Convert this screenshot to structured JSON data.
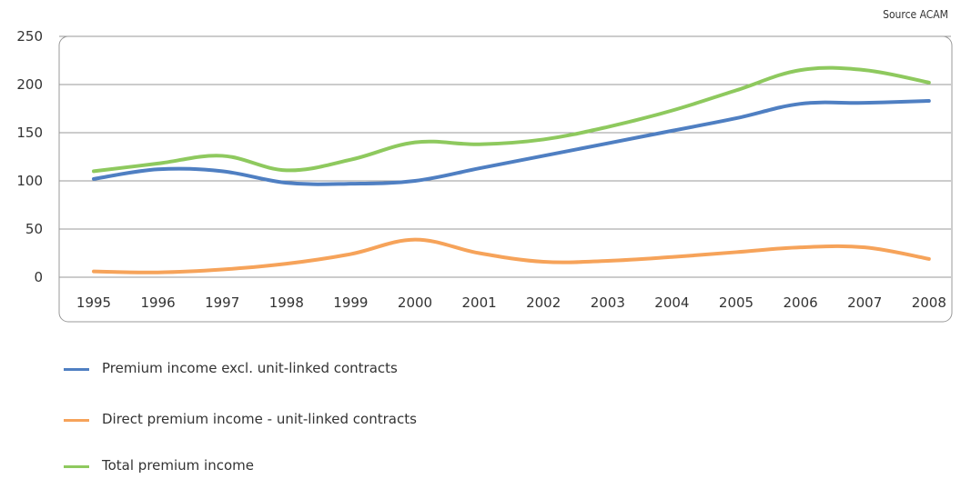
{
  "source_note": "Source ACAM",
  "colors": {
    "premium_excl": "#4f7fc2",
    "direct_unit_linked": "#f6a35a",
    "total": "#8ec95e",
    "frame": "#999999"
  },
  "chart_data": {
    "type": "line",
    "x": [
      "1995",
      "1996",
      "1997",
      "1998",
      "1999",
      "2000",
      "2001",
      "2002",
      "2003",
      "2004",
      "2005",
      "2006",
      "2007",
      "2008"
    ],
    "ylim": [
      0,
      250
    ],
    "yticks": [
      "0",
      "50",
      "100",
      "150",
      "200",
      "250"
    ],
    "grid": true,
    "legend_position": "bottom",
    "series": [
      {
        "name": "Premium income excl. unit-linked contracts",
        "color": "#4f7fc2",
        "values": [
          102,
          112,
          110,
          98,
          97,
          100,
          113,
          126,
          139,
          152,
          165,
          180,
          181,
          183
        ]
      },
      {
        "name": "Direct premium income - unit-linked contracts",
        "color": "#f6a35a",
        "values": [
          6,
          5,
          8,
          14,
          24,
          39,
          25,
          16,
          17,
          21,
          26,
          31,
          31,
          19
        ]
      },
      {
        "name": "Total premium income",
        "color": "#8ec95e",
        "values": [
          110,
          118,
          126,
          111,
          122,
          140,
          138,
          143,
          156,
          173,
          194,
          215,
          215,
          202
        ]
      }
    ]
  }
}
